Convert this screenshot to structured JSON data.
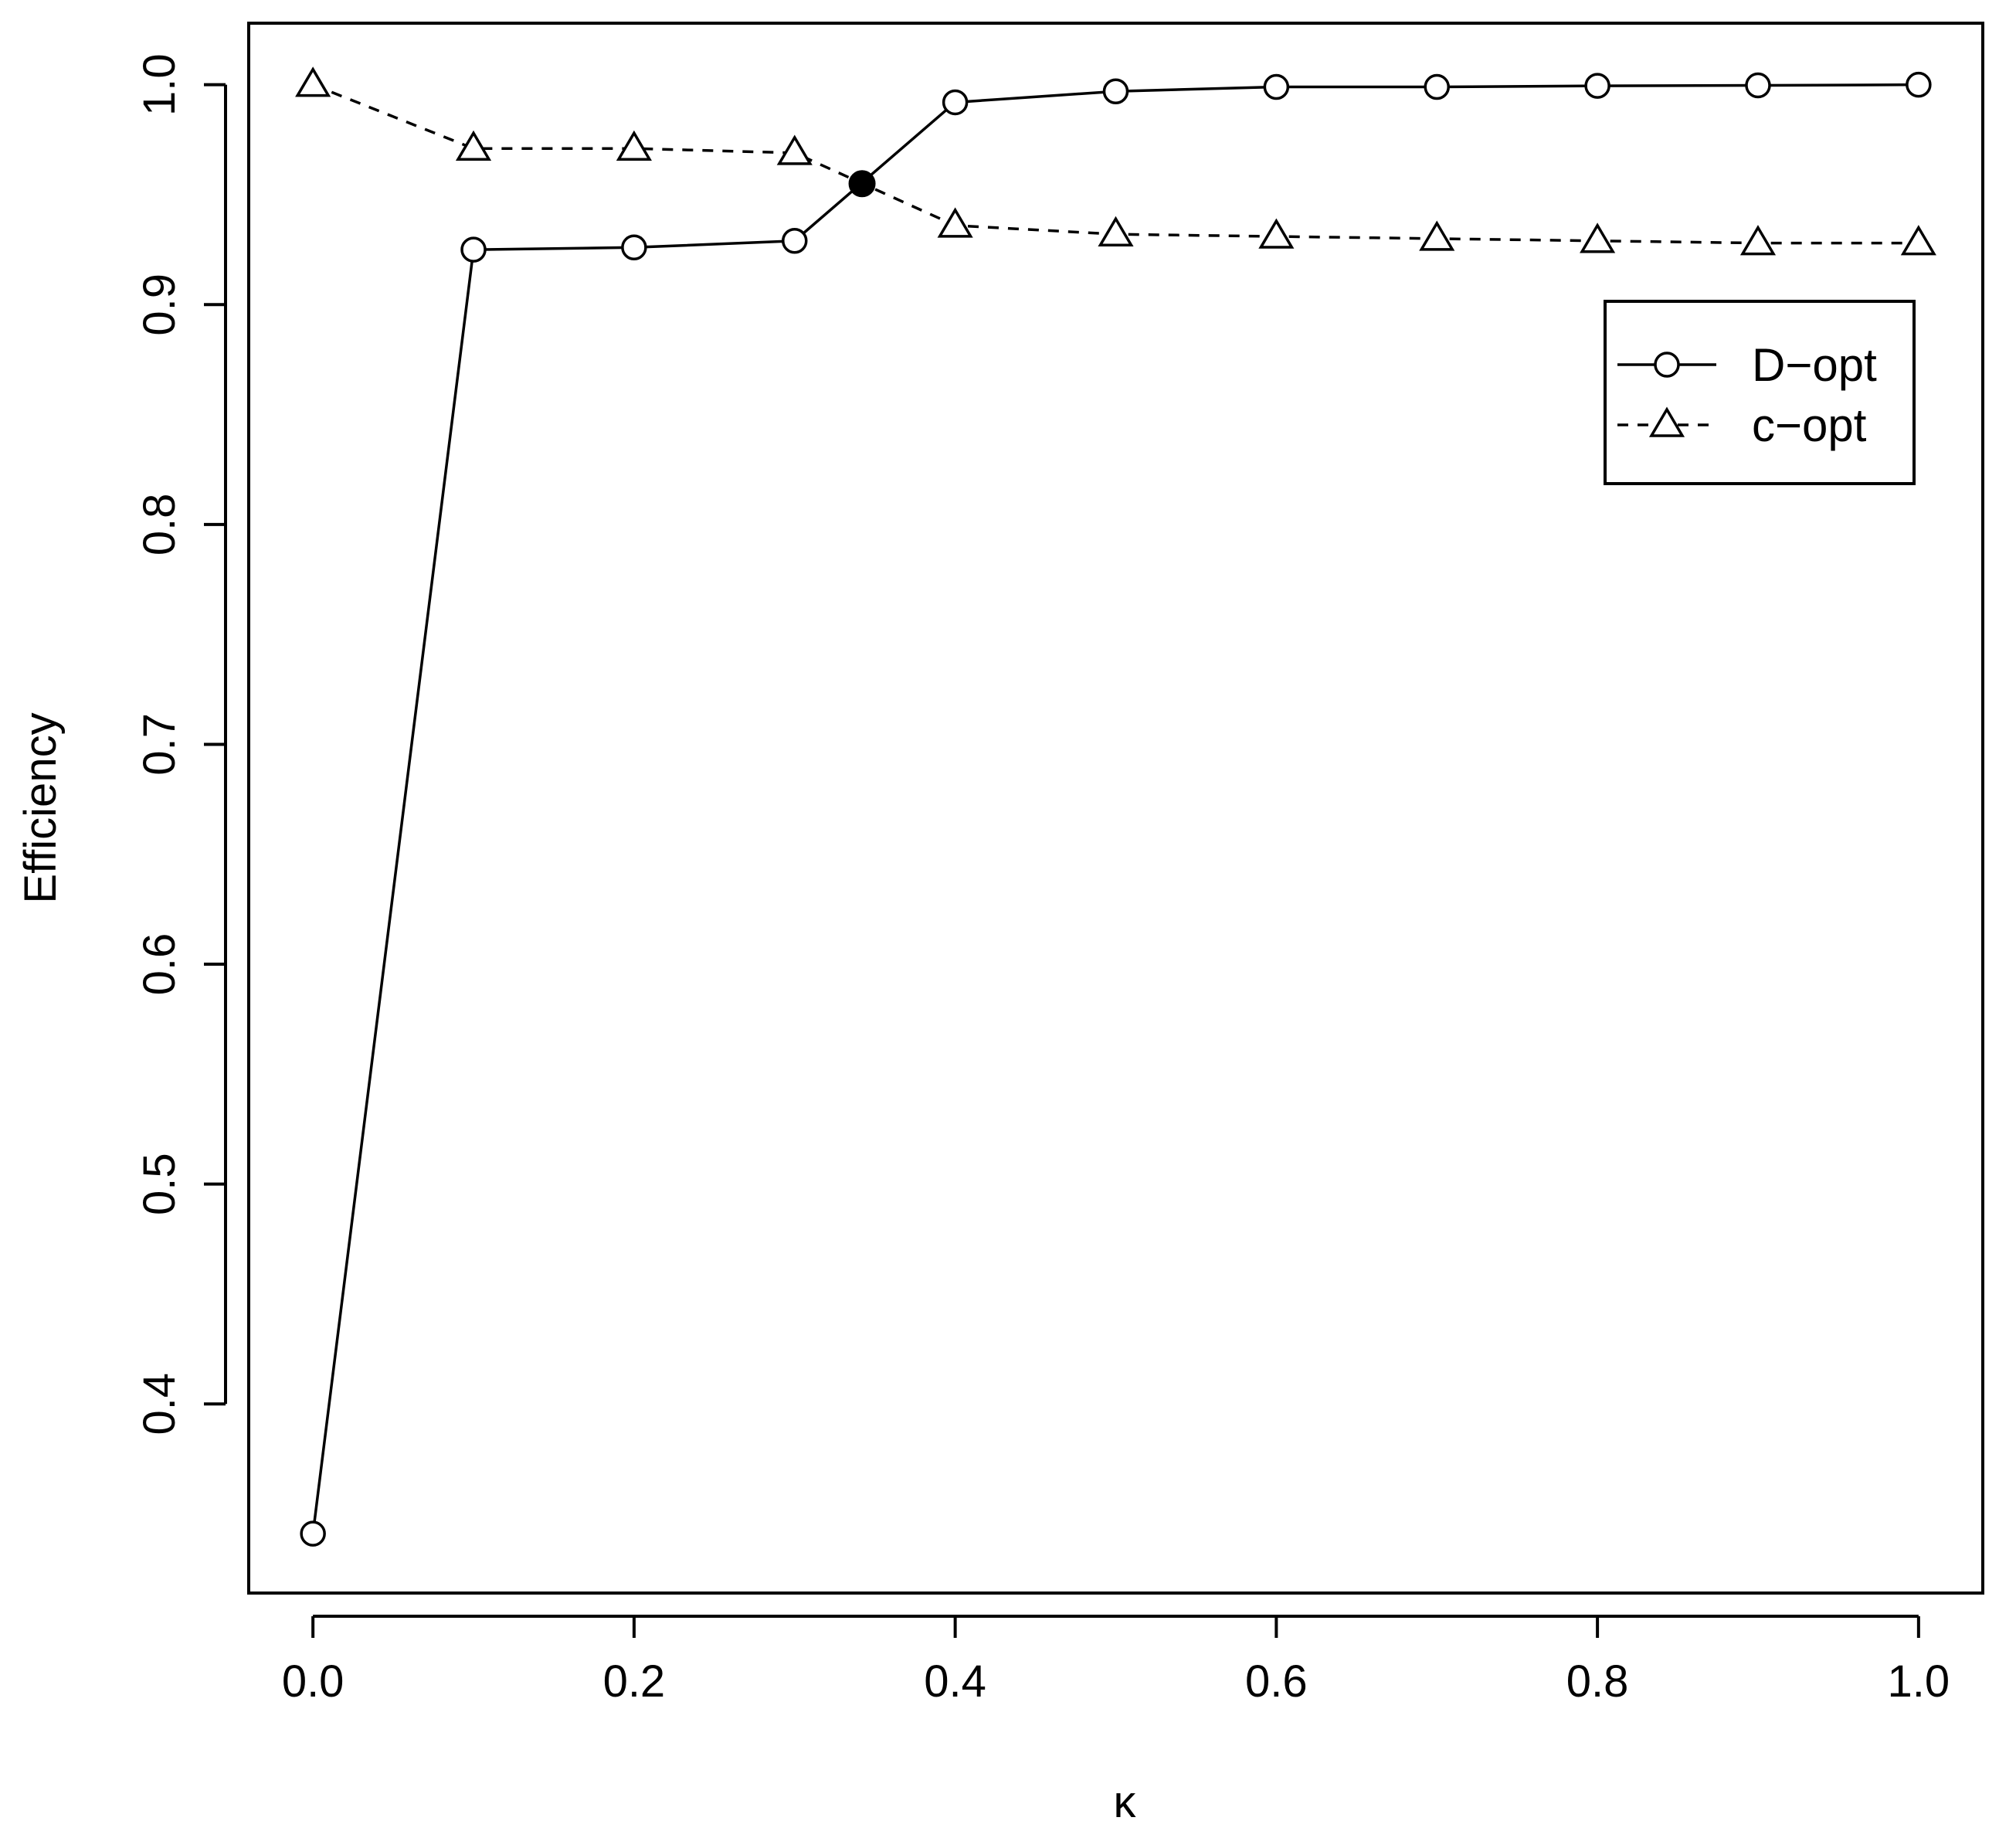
{
  "chart_data": {
    "type": "line",
    "xlabel": "κ",
    "ylabel": "Efficiency",
    "xlim": [
      -0.04,
      1.04
    ],
    "ylim": [
      0.314,
      1.028
    ],
    "xticks": [
      "0.0",
      "0.2",
      "0.4",
      "0.6",
      "0.8",
      "1.0"
    ],
    "yticks": [
      "0.4",
      "0.5",
      "0.6",
      "0.7",
      "0.8",
      "0.9",
      "1.0"
    ],
    "grid": false,
    "legend_position": "top-right",
    "series": [
      {
        "name": "D−opt",
        "line_style": "solid",
        "marker": "circle",
        "x": [
          0.0,
          0.1,
          0.2,
          0.3,
          0.4,
          0.5,
          0.6,
          0.7,
          0.8,
          0.9,
          1.0
        ],
        "y": [
          0.341,
          0.925,
          0.926,
          0.929,
          0.992,
          0.997,
          0.999,
          0.999,
          0.9995,
          0.9997,
          1.0
        ]
      },
      {
        "name": "c−opt",
        "line_style": "dashed",
        "marker": "triangle",
        "x": [
          0.0,
          0.1,
          0.2,
          0.3,
          0.4,
          0.5,
          0.6,
          0.7,
          0.8,
          0.9,
          1.0
        ],
        "y": [
          1.0,
          0.971,
          0.971,
          0.969,
          0.936,
          0.932,
          0.931,
          0.93,
          0.929,
          0.928,
          0.928
        ]
      }
    ],
    "highlight_point": {
      "x": 0.342,
      "y": 0.955,
      "marker": "filled-circle"
    }
  }
}
